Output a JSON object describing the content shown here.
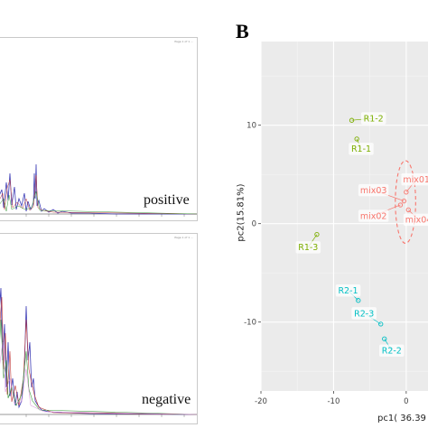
{
  "left_figure": {
    "top_label": "positive",
    "bottom_label": "negative"
  },
  "panel_b": {
    "letter": "B"
  },
  "chart_data": {
    "type": "scatter",
    "xlabel": "pc1( 36.39",
    "ylabel": "pc2(15.81%)",
    "xlim": [
      -20,
      3.0
    ],
    "ylim": [
      -17,
      18.5
    ],
    "x_ticks": [
      -20,
      -10,
      0
    ],
    "y_ticks": [
      10,
      0,
      -10
    ],
    "groups": [
      {
        "name": "R1",
        "color": "#7cae00",
        "points": [
          {
            "label": "R1-2",
            "x": -7.5,
            "y": 10.5,
            "lx": -4.5,
            "ly": 10.7
          },
          {
            "label": "R1-1",
            "x": -6.8,
            "y": 8.6,
            "lx": -6.2,
            "ly": 7.6
          },
          {
            "label": "R1-3",
            "x": -12.3,
            "y": -1.1,
            "lx": -13.5,
            "ly": -2.4
          }
        ]
      },
      {
        "name": "mix",
        "color": "#f8766d",
        "points": [
          {
            "label": "mix01",
            "x": 0.0,
            "y": 3.2,
            "lx": 1.4,
            "ly": 4.5
          },
          {
            "label": "mix03",
            "x": -0.3,
            "y": 2.3,
            "lx": -4.5,
            "ly": 3.4
          },
          {
            "label": "mix02",
            "x": -0.8,
            "y": 1.9,
            "lx": -4.5,
            "ly": 0.8
          },
          {
            "label": "mix04",
            "x": 0.3,
            "y": 1.4,
            "lx": 1.7,
            "ly": 0.4
          }
        ]
      },
      {
        "name": "R2",
        "color": "#00bfc4",
        "points": [
          {
            "label": "R2-1",
            "x": -6.6,
            "y": -7.8,
            "lx": -8.0,
            "ly": -6.8
          },
          {
            "label": "R2-3",
            "x": -3.5,
            "y": -10.2,
            "lx": -5.8,
            "ly": -9.1
          },
          {
            "label": "R2-2",
            "x": -3.0,
            "y": -11.7,
            "lx": -2.0,
            "ly": -12.9
          }
        ]
      }
    ],
    "ellipses": [
      {
        "group": "mix",
        "cx": -0.1,
        "cy": 2.2,
        "rx": 1.4,
        "ry": 4.2
      }
    ]
  }
}
